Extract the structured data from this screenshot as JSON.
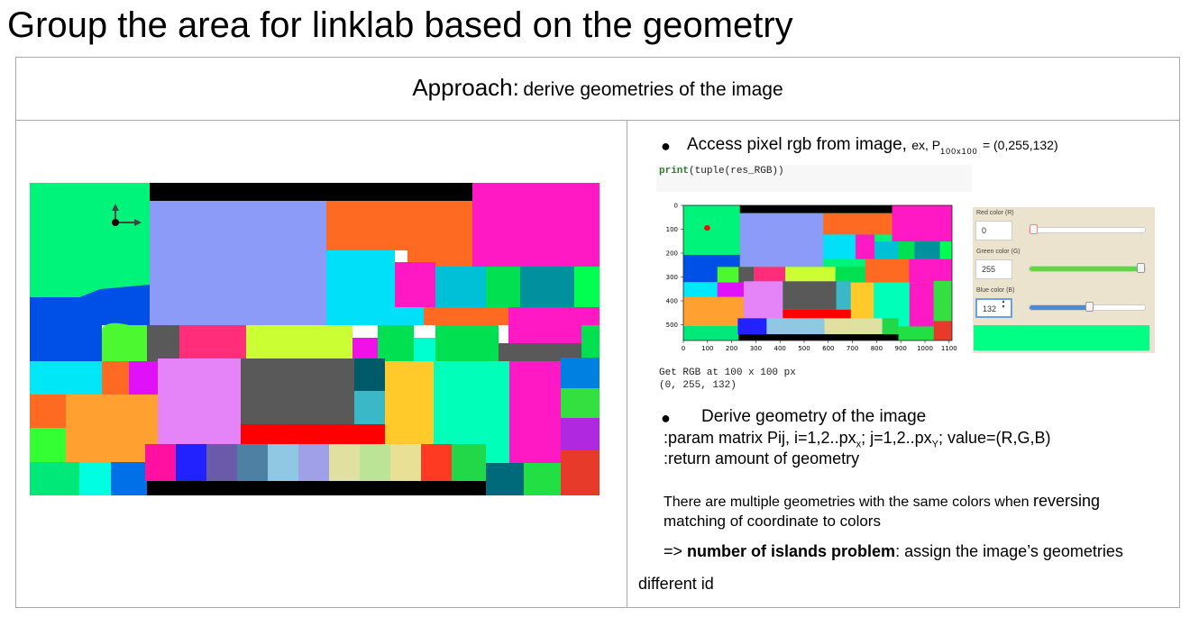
{
  "title": "Group the area for linklab based on the geometry",
  "header": {
    "label": "Approach:",
    "detail": "derive geometries of the image"
  },
  "bullet1": {
    "text": "Access pixel rgb from image,",
    "example_prefix": "ex, P",
    "example_subscript": "100x100",
    "example_value": "= (0,255,132)"
  },
  "code": {
    "fn": "print",
    "rest": "(tuple(res_RGB))"
  },
  "plot": {
    "x_ticks": [
      "0",
      "100",
      "200",
      "300",
      "400",
      "500",
      "600",
      "700",
      "800",
      "900",
      "1000",
      "1100"
    ],
    "y_ticks": [
      "0",
      "100",
      "200",
      "300",
      "400",
      "500"
    ]
  },
  "output": {
    "line1": "Get RGB at 100 x 100 px",
    "line2": "(0, 255, 132)"
  },
  "picker": {
    "red_label": "Red color (R)",
    "red_value": "0",
    "green_label": "Green color (G)",
    "green_value": "255",
    "blue_label": "Blue color (B)",
    "blue_value": "132",
    "blue_arrows": "▲▼",
    "red_fraction": 0,
    "green_fraction": 1,
    "blue_fraction": 0.518,
    "swatch_color": "#00ff84"
  },
  "bullet2": {
    "text": "Derive geometry of the image"
  },
  "param": {
    "prefix": ":param matrix Pij, i=1,2..px",
    "sub_x": "x",
    "mid": "; j=1,2..px",
    "sub_y": "Y",
    "suffix": "; value=(R,G,B)"
  },
  "return_line": ":return  amount of geometry",
  "multi": {
    "line1_a": "There are multiple geometries with the same colors when ",
    "line1_b": "reversing",
    "line2": "matching of coordinate to colors"
  },
  "islands": {
    "prefix": "=> ",
    "bold": "number of islands problem",
    "rest": ": assign the image’s geometries"
  },
  "different_id": "different id",
  "bullet_glyph": "●"
}
